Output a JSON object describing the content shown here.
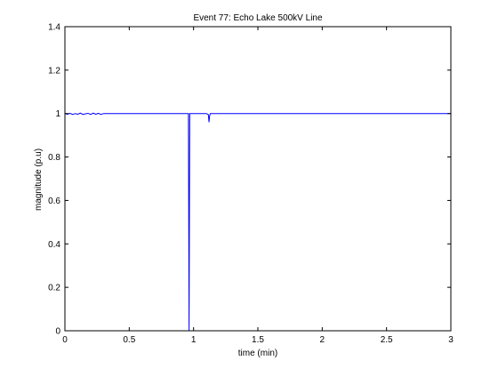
{
  "chart_data": {
    "type": "line",
    "title": "Event 77: Echo Lake 500kV Line",
    "xlabel": "time (min)",
    "ylabel": "magnitude (p.u)",
    "xlim": [
      0,
      3
    ],
    "ylim": [
      0,
      1.4
    ],
    "grid": false,
    "line_color": "#0000ff",
    "x_ticks": [
      {
        "value": 0,
        "label": "0"
      },
      {
        "value": 0.5,
        "label": "0.5"
      },
      {
        "value": 1,
        "label": "1"
      },
      {
        "value": 1.5,
        "label": "1.5"
      },
      {
        "value": 2,
        "label": "2"
      },
      {
        "value": 2.5,
        "label": "2.5"
      },
      {
        "value": 3,
        "label": "3"
      }
    ],
    "y_ticks": [
      {
        "value": 0,
        "label": "0"
      },
      {
        "value": 0.2,
        "label": "0.2"
      },
      {
        "value": 0.4,
        "label": "0.4"
      },
      {
        "value": 0.6,
        "label": "0.6"
      },
      {
        "value": 0.8,
        "label": "0.8"
      },
      {
        "value": 1,
        "label": "1"
      },
      {
        "value": 1.2,
        "label": "1.2"
      },
      {
        "value": 1.4,
        "label": "1.4"
      }
    ],
    "series": [
      {
        "x": [
          0,
          0.02,
          0.04,
          0.06,
          0.08,
          0.1,
          0.12,
          0.14,
          0.16,
          0.18,
          0.2,
          0.22,
          0.24,
          0.26,
          0.28,
          0.3,
          0.4,
          0.6,
          0.8,
          0.96,
          0.965,
          0.97,
          0.975,
          0.98,
          1.0,
          1.05,
          1.1,
          1.115,
          1.12,
          1.125,
          1.13,
          1.2,
          1.5,
          2.0,
          2.5,
          3.0
        ],
        "y": [
          1.0,
          0.997,
          1.001,
          0.996,
          1.0,
          0.997,
          1.002,
          0.996,
          0.999,
          1.001,
          0.996,
          1.002,
          0.997,
          1.001,
          0.996,
          1.0,
          1.0,
          1.0,
          1.0,
          1.0,
          0.0,
          1.0,
          1.0,
          1.0,
          1.0,
          1.0,
          1.0,
          0.995,
          0.96,
          0.99,
          1.0,
          1.0,
          1.0,
          1.0,
          1.0,
          1.0
        ]
      }
    ]
  }
}
